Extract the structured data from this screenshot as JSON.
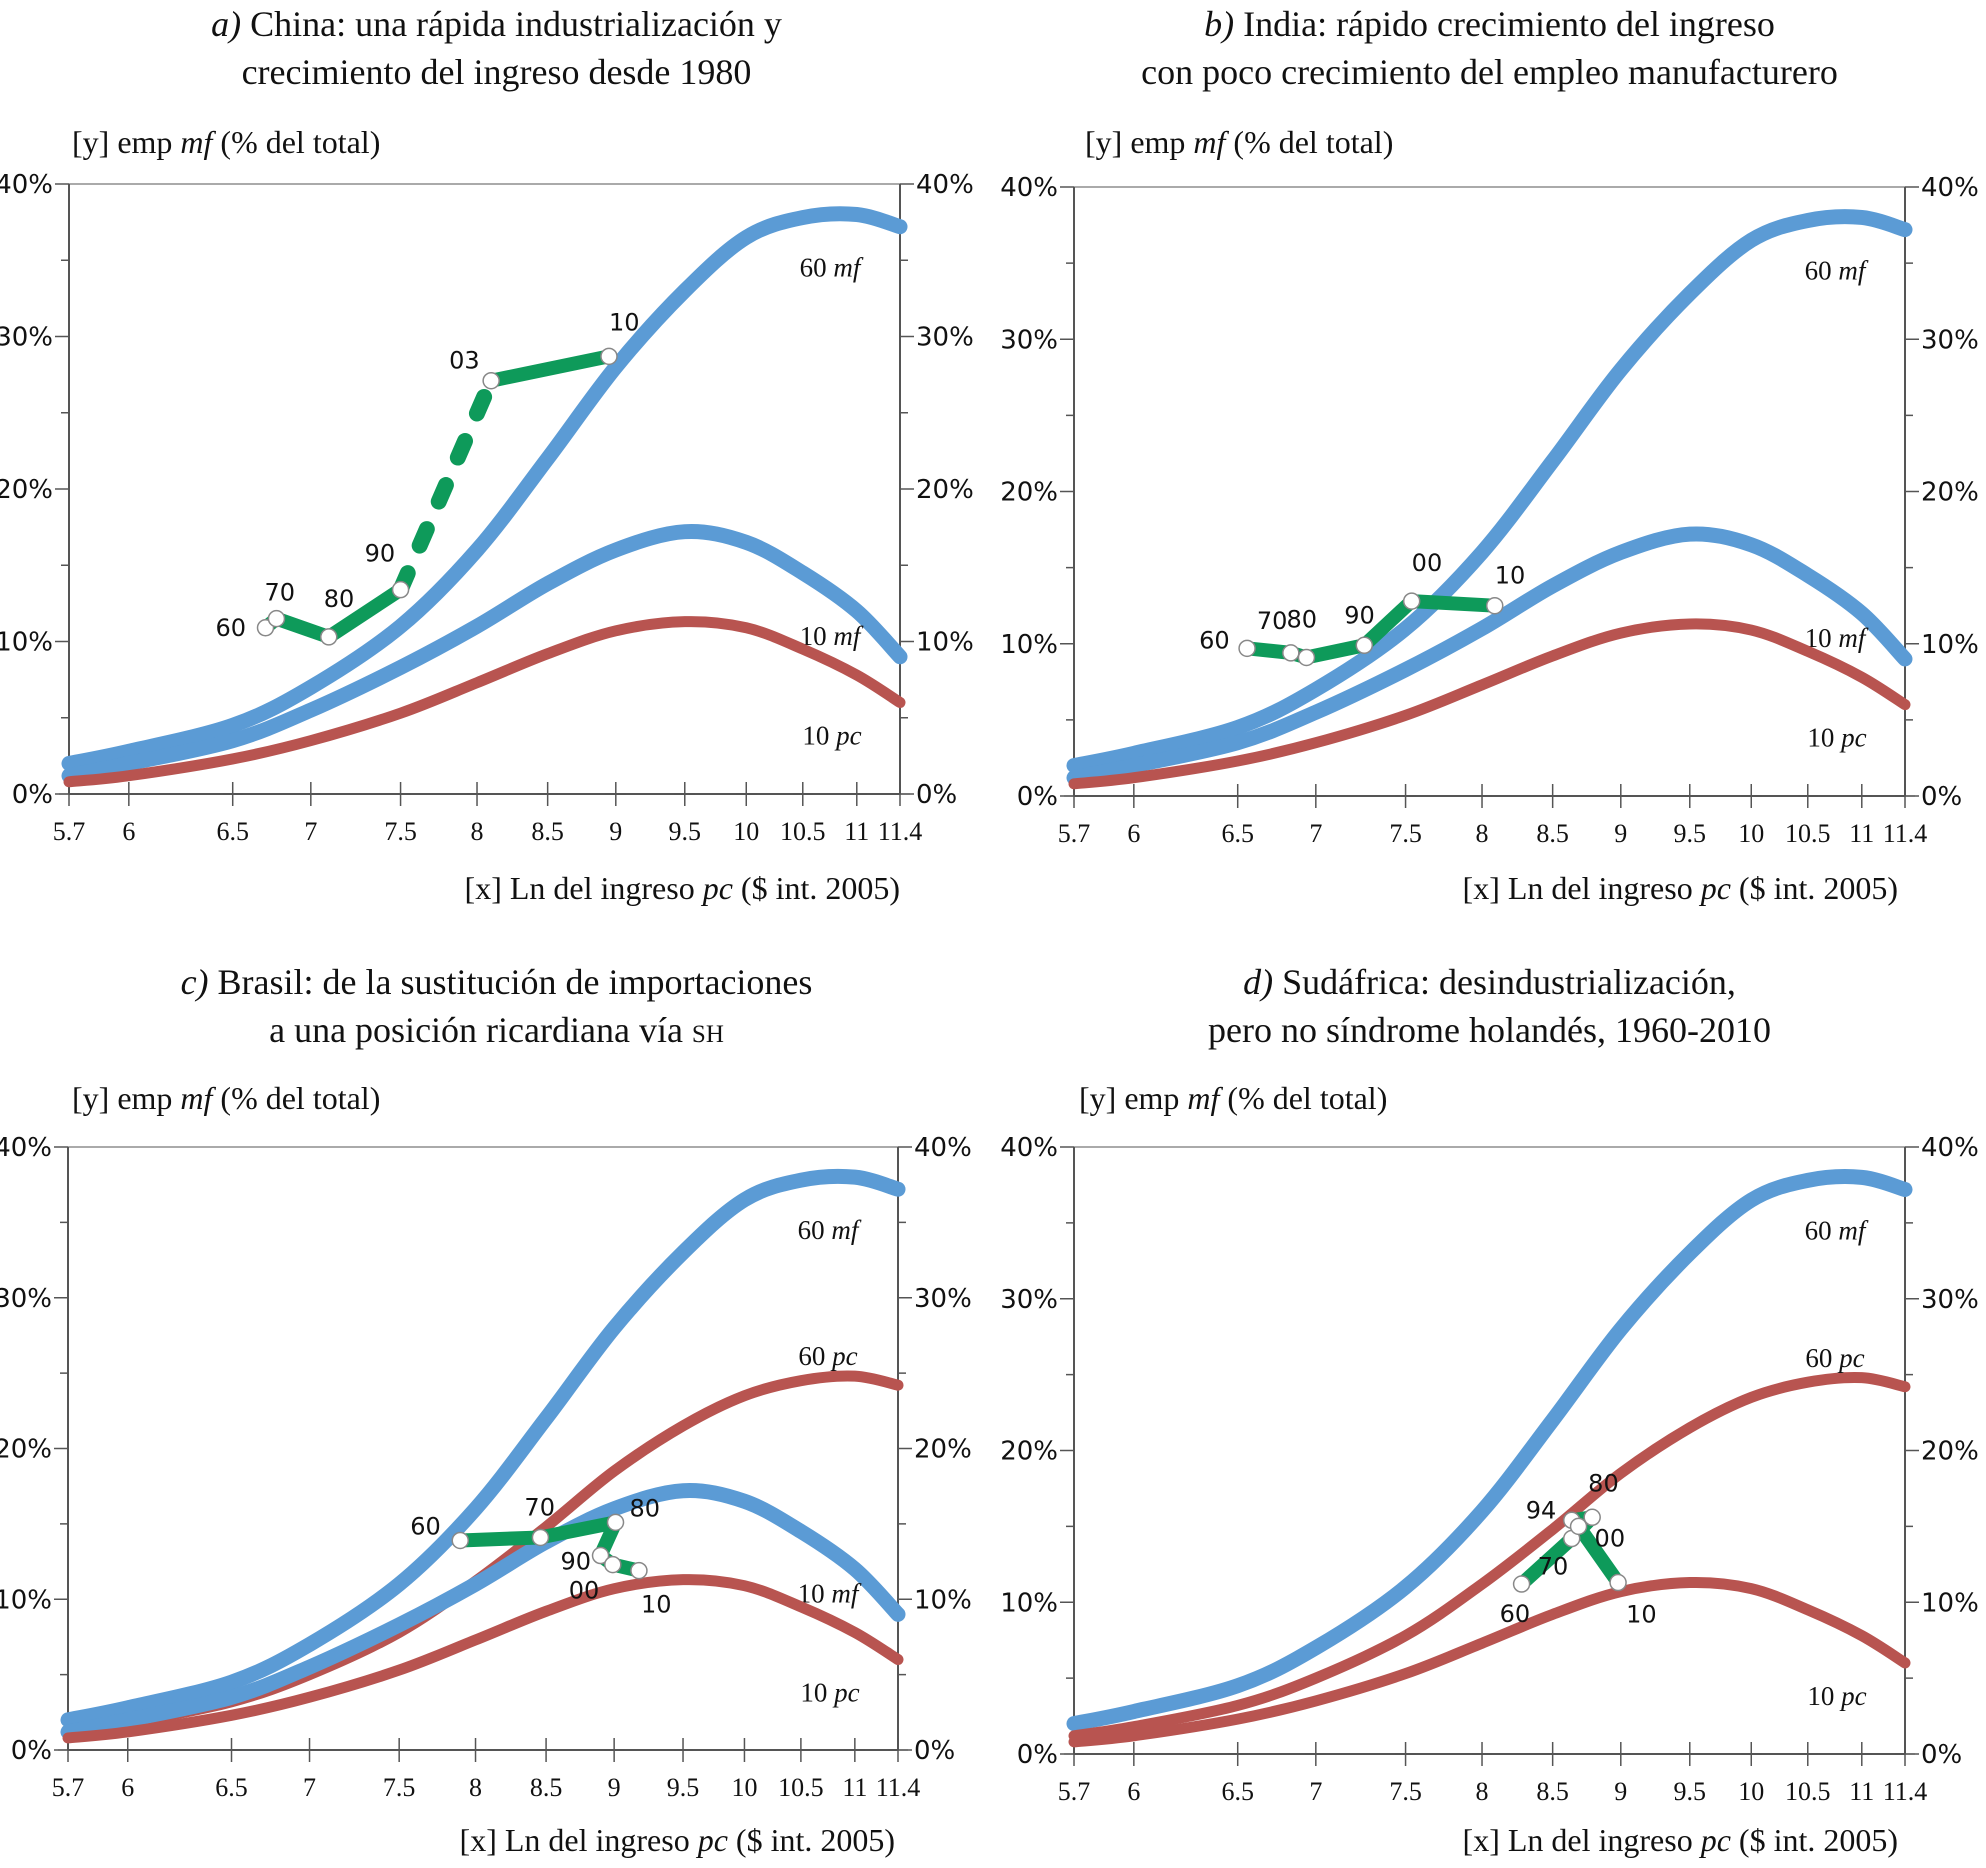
{
  "colors": {
    "mf_curve": "#5B9BD5",
    "pc_curve": "#B85450",
    "country_path": "#0E9A5A",
    "axis": "#555555"
  },
  "chart_data": [
    {
      "type": "line",
      "id": "a",
      "title_prefix": "a)",
      "title_line1": "China: una rápida industrialización y",
      "title_line2": "crecimiento del ingreso desde 1980",
      "ylabel_prefix": "[y] emp ",
      "ylabel_italic": "mf",
      "ylabel_suffix": " (% del total)",
      "xlabel_prefix": "[x] Ln del ingreso ",
      "xlabel_italic": "pc",
      "xlabel_suffix": " ($ int. 2005)",
      "xticks": [
        "5.7",
        "6",
        "6.5",
        "7",
        "7.5",
        "8",
        "8.5",
        "9",
        "9.5",
        "10",
        "10.5",
        "11",
        "11.4"
      ],
      "yticks": [
        "0%",
        "10%",
        "20%",
        "30%",
        "40%"
      ],
      "xlim": [
        5.7,
        11.4
      ],
      "ylim": [
        0,
        40
      ],
      "curves": [
        {
          "name": "60 mf",
          "label_num": "60",
          "label_it": "mf",
          "kind": "mf",
          "x": [
            5.7,
            6,
            6.5,
            7,
            7.5,
            8,
            8.5,
            9,
            9.5,
            10,
            10.5,
            11,
            11.4
          ],
          "y": [
            2,
            2.8,
            4.5,
            7,
            11,
            16,
            22,
            28,
            33,
            36.5,
            37.8,
            38,
            37.2
          ]
        },
        {
          "name": "10 mf",
          "label_num": "10",
          "label_it": "mf",
          "kind": "mf",
          "x": [
            5.7,
            6,
            6.5,
            7,
            7.5,
            8,
            8.5,
            9,
            9.5,
            10,
            10.5,
            11,
            11.4
          ],
          "y": [
            1.2,
            2,
            3.5,
            5.5,
            8.3,
            11,
            13.8,
            16,
            17.2,
            16.5,
            14.5,
            12,
            9
          ]
        },
        {
          "name": "10 pc",
          "label_num": "10",
          "label_it": "pc",
          "kind": "pc",
          "x": [
            5.7,
            6,
            6.5,
            7,
            7.5,
            8,
            8.5,
            9,
            9.5,
            10,
            10.5,
            11,
            11.4
          ],
          "y": [
            0.8,
            1.2,
            2.3,
            3.5,
            5.3,
            7.3,
            9.2,
            10.7,
            11.3,
            10.9,
            9.5,
            7.8,
            6
          ]
        }
      ],
      "country_path": [
        {
          "year": "60",
          "x": 6.71,
          "y": 10.9
        },
        {
          "year": "70",
          "x": 6.78,
          "y": 11.5
        },
        {
          "year": "80",
          "x": 7.1,
          "y": 10.3
        },
        {
          "year": "90",
          "x": 7.5,
          "y": 13.4
        },
        {
          "year": "03",
          "x": 8.1,
          "y": 27.1,
          "dashed_from_prev": true
        },
        {
          "year": "10",
          "x": 8.95,
          "y": 28.7
        }
      ]
    },
    {
      "type": "line",
      "id": "b",
      "title_prefix": "b)",
      "title_line1": "India: rápido crecimiento del ingreso",
      "title_line2": "con poco crecimiento del empleo manufacturero",
      "ylabel_prefix": "[y] emp ",
      "ylabel_italic": "mf",
      "ylabel_suffix": " (% del total)",
      "xlabel_prefix": "[x] Ln del ingreso ",
      "xlabel_italic": "pc",
      "xlabel_suffix": " ($ int. 2005)",
      "xticks": [
        "5.7",
        "6",
        "6.5",
        "7",
        "7.5",
        "8",
        "8.5",
        "9",
        "9.5",
        "10",
        "10.5",
        "11",
        "11.4"
      ],
      "yticks": [
        "0%",
        "10%",
        "20%",
        "30%",
        "40%"
      ],
      "xlim": [
        5.7,
        11.4
      ],
      "ylim": [
        0,
        40
      ],
      "curves": [
        {
          "name": "60 mf",
          "label_num": "60",
          "label_it": "mf",
          "kind": "mf",
          "x": [
            5.7,
            6,
            6.5,
            7,
            7.5,
            8,
            8.5,
            9,
            9.5,
            10,
            10.5,
            11,
            11.4
          ],
          "y": [
            2,
            2.8,
            4.5,
            7,
            11,
            16,
            22,
            28,
            33,
            36.5,
            37.8,
            38,
            37.2
          ]
        },
        {
          "name": "10 mf",
          "label_num": "10",
          "label_it": "mf",
          "kind": "mf",
          "x": [
            5.7,
            6,
            6.5,
            7,
            7.5,
            8,
            8.5,
            9,
            9.5,
            10,
            10.5,
            11,
            11.4
          ],
          "y": [
            1.2,
            2,
            3.5,
            5.5,
            8.3,
            11,
            13.8,
            16,
            17.2,
            16.5,
            14.5,
            12,
            9
          ]
        },
        {
          "name": "10 pc",
          "label_num": "10",
          "label_it": "pc",
          "kind": "pc",
          "x": [
            5.7,
            6,
            6.5,
            7,
            7.5,
            8,
            8.5,
            9,
            9.5,
            10,
            10.5,
            11,
            11.4
          ],
          "y": [
            0.8,
            1.2,
            2.3,
            3.5,
            5.3,
            7.3,
            9.2,
            10.7,
            11.3,
            10.9,
            9.5,
            7.8,
            6
          ]
        }
      ],
      "country_path": [
        {
          "year": "60",
          "x": 6.56,
          "y": 9.7
        },
        {
          "year": "70",
          "x": 6.84,
          "y": 9.4
        },
        {
          "year": "80",
          "x": 6.94,
          "y": 9.1
        },
        {
          "year": "90",
          "x": 7.27,
          "y": 9.9
        },
        {
          "year": "00",
          "x": 7.54,
          "y": 12.8
        },
        {
          "year": "10",
          "x": 8.09,
          "y": 12.5
        }
      ]
    },
    {
      "type": "line",
      "id": "c",
      "title_prefix": "c)",
      "title_line1": "Brasil: de la sustitución de importaciones",
      "title_line2": "a una posición ricardiana vía ",
      "title_line2_sc": "sh",
      "ylabel_prefix": "[y] emp ",
      "ylabel_italic": "mf",
      "ylabel_suffix": " (% del total)",
      "xlabel_prefix": "[x] Ln del ingreso ",
      "xlabel_italic": "pc",
      "xlabel_suffix": " ($ int. 2005)",
      "xticks": [
        "5.7",
        "6",
        "6.5",
        "7",
        "7.5",
        "8",
        "8.5",
        "9",
        "9.5",
        "10",
        "10.5",
        "11",
        "11.4"
      ],
      "yticks": [
        "0%",
        "10%",
        "20%",
        "30%",
        "40%"
      ],
      "xlim": [
        5.7,
        11.4
      ],
      "ylim": [
        0,
        40
      ],
      "curves": [
        {
          "name": "60 mf",
          "label_num": "60",
          "label_it": "mf",
          "kind": "mf",
          "x": [
            5.7,
            6,
            6.5,
            7,
            7.5,
            8,
            8.5,
            9,
            9.5,
            10,
            10.5,
            11,
            11.4
          ],
          "y": [
            2,
            2.8,
            4.5,
            7,
            11,
            16,
            22,
            28,
            33,
            36.5,
            37.8,
            38,
            37.2
          ]
        },
        {
          "name": "60 pc",
          "label_num": "60",
          "label_it": "pc",
          "kind": "pc",
          "x": [
            5.7,
            6,
            6.5,
            7,
            7.5,
            8,
            8.5,
            9,
            9.5,
            10,
            10.5,
            11,
            11.4
          ],
          "y": [
            1.2,
            1.8,
            3.2,
            5,
            7.8,
            11.2,
            14.8,
            18.5,
            21.5,
            23.5,
            24.5,
            24.8,
            24.2
          ]
        },
        {
          "name": "10 mf",
          "label_num": "10",
          "label_it": "mf",
          "kind": "mf",
          "x": [
            5.7,
            6,
            6.5,
            7,
            7.5,
            8,
            8.5,
            9,
            9.5,
            10,
            10.5,
            11,
            11.4
          ],
          "y": [
            1.2,
            2,
            3.5,
            5.5,
            8.3,
            11,
            13.8,
            16,
            17.2,
            16.5,
            14.5,
            12,
            9
          ]
        },
        {
          "name": "10 pc",
          "label_num": "10",
          "label_it": "pc",
          "kind": "pc",
          "x": [
            5.7,
            6,
            6.5,
            7,
            7.5,
            8,
            8.5,
            9,
            9.5,
            10,
            10.5,
            11,
            11.4
          ],
          "y": [
            0.8,
            1.2,
            2.3,
            3.5,
            5.3,
            7.3,
            9.2,
            10.7,
            11.3,
            10.9,
            9.5,
            7.8,
            6
          ]
        }
      ],
      "country_path": [
        {
          "year": "60",
          "x": 7.9,
          "y": 13.9
        },
        {
          "year": "70",
          "x": 8.46,
          "y": 14.1
        },
        {
          "year": "80",
          "x": 9.01,
          "y": 15.1
        },
        {
          "year": "90",
          "x": 8.9,
          "y": 12.9
        },
        {
          "year": "00",
          "x": 8.99,
          "y": 12.3
        },
        {
          "year": "10",
          "x": 9.18,
          "y": 11.9
        }
      ]
    },
    {
      "type": "line",
      "id": "d",
      "title_prefix": "d)",
      "title_line1": "Sudáfrica: desindustrialización,",
      "title_line2": "pero no síndrome holandés, 1960-2010",
      "ylabel_prefix": "[y] emp ",
      "ylabel_italic": "mf",
      "ylabel_suffix": " (% del total)",
      "xlabel_prefix": "[x] Ln del ingreso ",
      "xlabel_italic": "pc",
      "xlabel_suffix": " ($ int. 2005)",
      "xticks": [
        "5.7",
        "6",
        "6.5",
        "7",
        "7.5",
        "8",
        "8.5",
        "9",
        "9.5",
        "10",
        "10.5",
        "11",
        "11.4"
      ],
      "yticks": [
        "0%",
        "10%",
        "20%",
        "30%",
        "40%"
      ],
      "xlim": [
        5.7,
        11.4
      ],
      "ylim": [
        0,
        40
      ],
      "curves": [
        {
          "name": "60 mf",
          "label_num": "60",
          "label_it": "mf",
          "kind": "mf",
          "x": [
            5.7,
            6,
            6.5,
            7,
            7.5,
            8,
            8.5,
            9,
            9.5,
            10,
            10.5,
            11,
            11.4
          ],
          "y": [
            2,
            2.8,
            4.5,
            7,
            11,
            16,
            22,
            28,
            33,
            36.5,
            37.8,
            38,
            37.2
          ]
        },
        {
          "name": "60 pc",
          "label_num": "60",
          "label_it": "pc",
          "kind": "pc",
          "x": [
            5.7,
            6,
            6.5,
            7,
            7.5,
            8,
            8.5,
            9,
            9.5,
            10,
            10.5,
            11,
            11.4
          ],
          "y": [
            1.2,
            1.8,
            3.2,
            5,
            7.8,
            11.2,
            14.8,
            18.5,
            21.5,
            23.5,
            24.5,
            24.8,
            24.2
          ]
        },
        {
          "name": "10 pc",
          "label_num": "10",
          "label_it": "pc",
          "kind": "pc",
          "x": [
            5.7,
            6,
            6.5,
            7,
            7.5,
            8,
            8.5,
            9,
            9.5,
            10,
            10.5,
            11,
            11.4
          ],
          "y": [
            0.8,
            1.2,
            2.3,
            3.5,
            5.3,
            7.3,
            9.2,
            10.7,
            11.3,
            10.9,
            9.5,
            7.8,
            6
          ]
        }
      ],
      "country_path": [
        {
          "year": "60",
          "x": 8.28,
          "y": 11.2
        },
        {
          "year": "70",
          "x": 8.64,
          "y": 14.2
        },
        {
          "year": "80",
          "x": 8.79,
          "y": 15.6
        },
        {
          "year": "94",
          "x": 8.64,
          "y": 15.4
        },
        {
          "year": "00",
          "x": 8.69,
          "y": 15.0
        },
        {
          "year": "10",
          "x": 8.98,
          "y": 11.3
        }
      ]
    }
  ]
}
